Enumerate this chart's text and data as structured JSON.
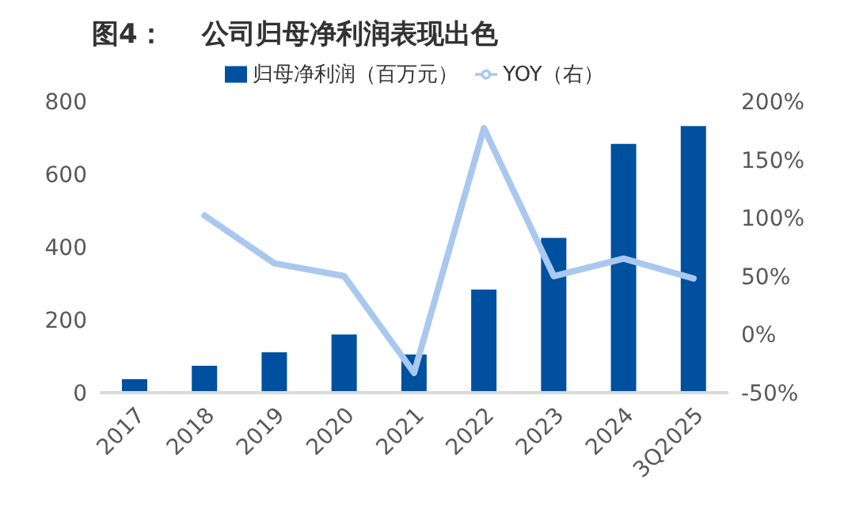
{
  "chart_data": {
    "type": "bar",
    "title": "图4：    公司归母净利润表现出色",
    "categories": [
      "2017",
      "2018",
      "2019",
      "2020",
      "2021",
      "2022",
      "2023",
      "2024",
      "3Q2025"
    ],
    "series": [
      {
        "name": "归母净利润（百万元）",
        "color": "#0050a0",
        "values": [
          37,
          74,
          111,
          160,
          105,
          283,
          425,
          683,
          732
        ]
      },
      {
        "name": "YOY（右）",
        "type": "line",
        "axis": "y2",
        "color": "#a9c8f0",
        "values": [
          null,
          102,
          61,
          50,
          -33,
          177,
          50,
          65,
          48
        ]
      }
    ],
    "ylim": [
      0,
      800
    ],
    "yticks": [
      0,
      200,
      400,
      600,
      800
    ],
    "y2lim": [
      -50,
      200
    ],
    "y2ticks": [
      {
        "value": -50,
        "label": "-50%"
      },
      {
        "value": 0,
        "label": "0%"
      },
      {
        "value": 50,
        "label": "50%"
      },
      {
        "value": 100,
        "label": "100%"
      },
      {
        "value": 150,
        "label": "150%"
      },
      {
        "value": 200,
        "label": "200%"
      }
    ],
    "legend": "top",
    "marker": "none"
  }
}
